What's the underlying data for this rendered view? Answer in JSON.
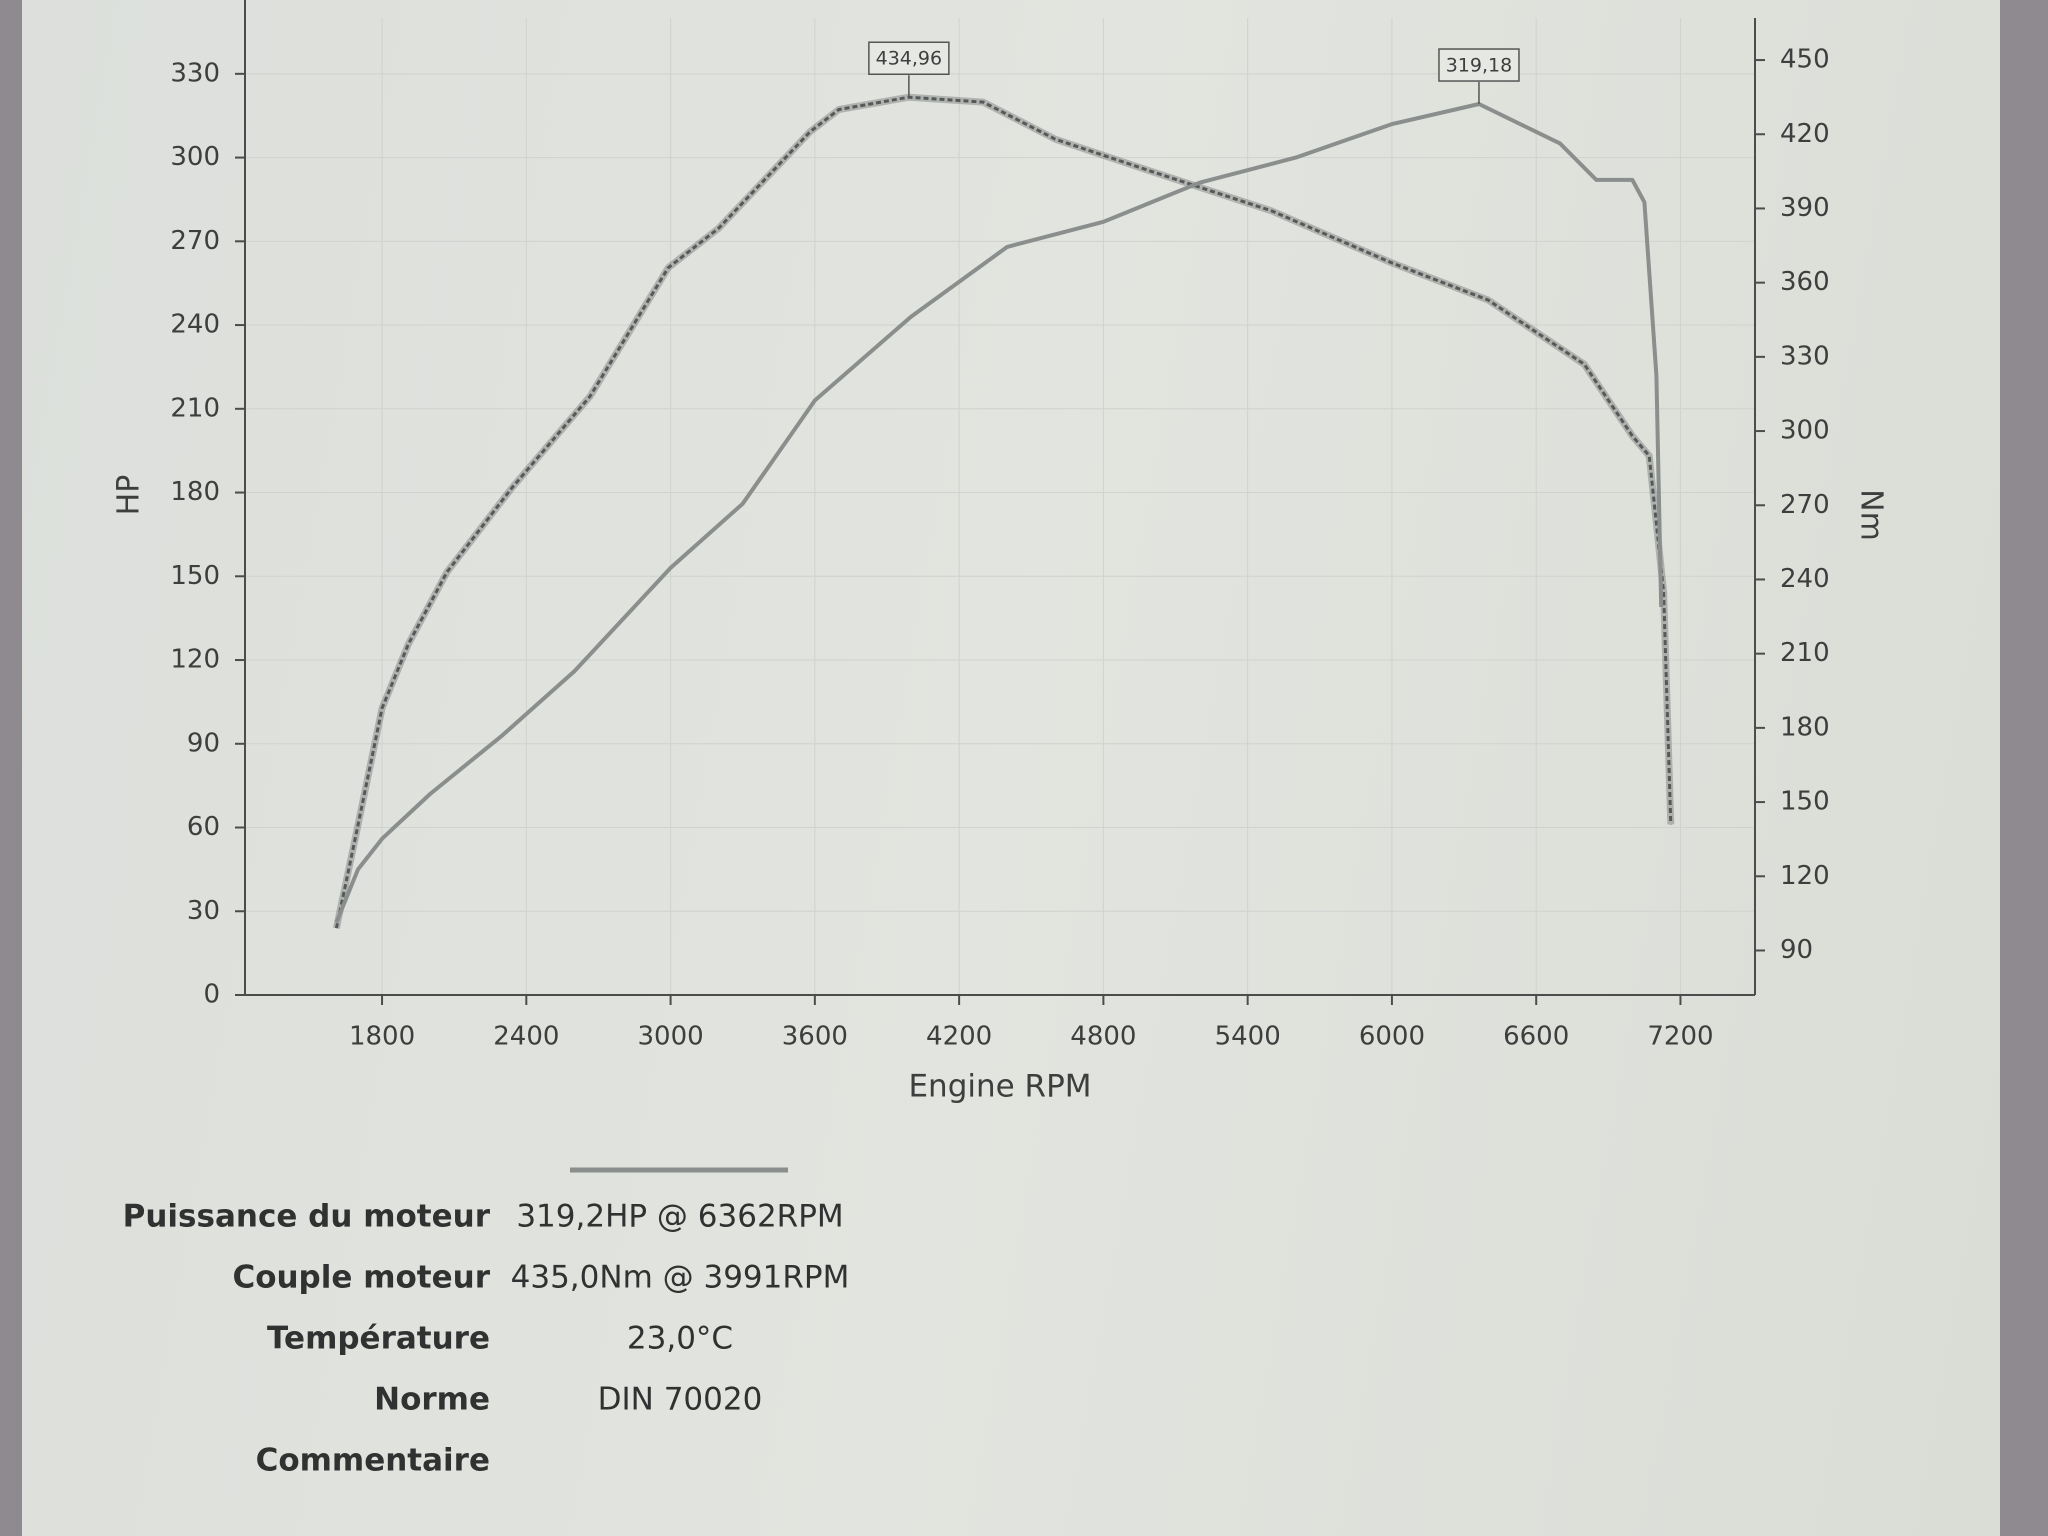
{
  "chart_data": {
    "type": "line",
    "xlabel": "Engine RPM",
    "ylabel": "HP",
    "y2label": "Nm",
    "xlim": [
      1230,
      7510
    ],
    "xticks": [
      1800,
      2400,
      3000,
      3600,
      4200,
      4800,
      5400,
      6000,
      6600,
      7200
    ],
    "ylim": [
      0,
      350
    ],
    "yticks": [
      0,
      30,
      60,
      90,
      120,
      150,
      180,
      210,
      240,
      270,
      300,
      330
    ],
    "y2lim": [
      72,
      467
    ],
    "y2ticks": [
      90,
      120,
      150,
      180,
      210,
      240,
      270,
      300,
      330,
      360,
      390,
      420,
      450
    ],
    "grid": true,
    "series": [
      {
        "axis": "y2",
        "color": "#555a58",
        "line_style": "dashed",
        "x": [
          1610,
          1690,
          1800,
          1910,
          2070,
          2340,
          2665,
          2990,
          3200,
          3580,
          3700,
          3991,
          4300,
          4600,
          5000,
          5500,
          6000,
          6400,
          6800,
          7000,
          7070,
          7130,
          7160
        ],
        "values": [
          99,
          136,
          188,
          214,
          243,
          277,
          314,
          366,
          382,
          421,
          430,
          434.96,
          433,
          418,
          405,
          389,
          368,
          353,
          327,
          298,
          290,
          235,
          141
        ]
      },
      {
        "color": "#8a8e8c",
        "line_style": "solid",
        "x": [
          1610,
          1700,
          1800,
          2000,
          2300,
          2600,
          3000,
          3300,
          3600,
          4000,
          4400,
          4800,
          5200,
          5600,
          6000,
          6362,
          6700,
          6850,
          7000,
          7050,
          7100,
          7120
        ],
        "values": [
          26,
          45,
          56,
          72,
          93,
          116,
          153,
          176,
          213,
          243,
          268,
          277,
          291,
          300,
          312,
          319.18,
          305,
          292,
          292,
          284,
          222,
          139
        ]
      }
    ],
    "annotations": [
      {
        "text": "434,96",
        "x": 3991,
        "y": 434.96,
        "axis": "y2"
      },
      {
        "text": "319,18",
        "x": 6362,
        "y": 319.18,
        "axis": "y"
      }
    ]
  },
  "details": {
    "rows": [
      {
        "label": "Puissance du moteur",
        "value": "319,2HP @ 6362RPM"
      },
      {
        "label": "Couple moteur",
        "value": "435,0Nm @ 3991RPM"
      },
      {
        "label": "Température",
        "value": "23,0°C"
      },
      {
        "label": "Norme",
        "value": "DIN 70020"
      },
      {
        "label": "Commentaire"
      }
    ]
  }
}
